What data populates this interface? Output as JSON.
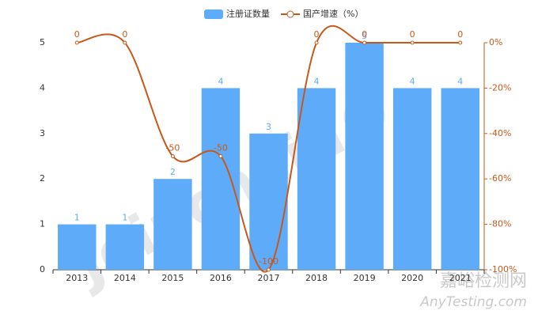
{
  "chart_data": {
    "type": "bar-line",
    "categories": [
      "2013",
      "2014",
      "2015",
      "2016",
      "2017",
      "2018",
      "2019",
      "2020",
      "2021"
    ],
    "series": [
      {
        "name": "注册证数量",
        "type": "bar",
        "color": "#5eacf9",
        "values": [
          1,
          1,
          2,
          4,
          3,
          4,
          5,
          4,
          4
        ]
      },
      {
        "name": "国产增速（%）",
        "type": "line",
        "axis": "y2",
        "color": "#c8581a",
        "values": [
          0,
          0,
          -50,
          -50,
          -100,
          0,
          0,
          0,
          0
        ]
      }
    ],
    "ylim": [
      0,
      5
    ],
    "yticks": [
      0,
      1,
      2,
      3,
      4,
      5
    ],
    "y2lim": [
      -100,
      0
    ],
    "y2ticks": [
      {
        "value": 0,
        "label": "0%"
      },
      {
        "value": -20,
        "label": "-20%"
      },
      {
        "value": -40,
        "label": "-40%"
      },
      {
        "value": -60,
        "label": "-60%"
      },
      {
        "value": -80,
        "label": "-80%"
      },
      {
        "value": -100,
        "label": "-100%"
      }
    ],
    "legend": "top",
    "grid": false,
    "watermarks": [
      "Joinchain®",
      "嘉峪检测网",
      "AnyTesting.com"
    ]
  }
}
